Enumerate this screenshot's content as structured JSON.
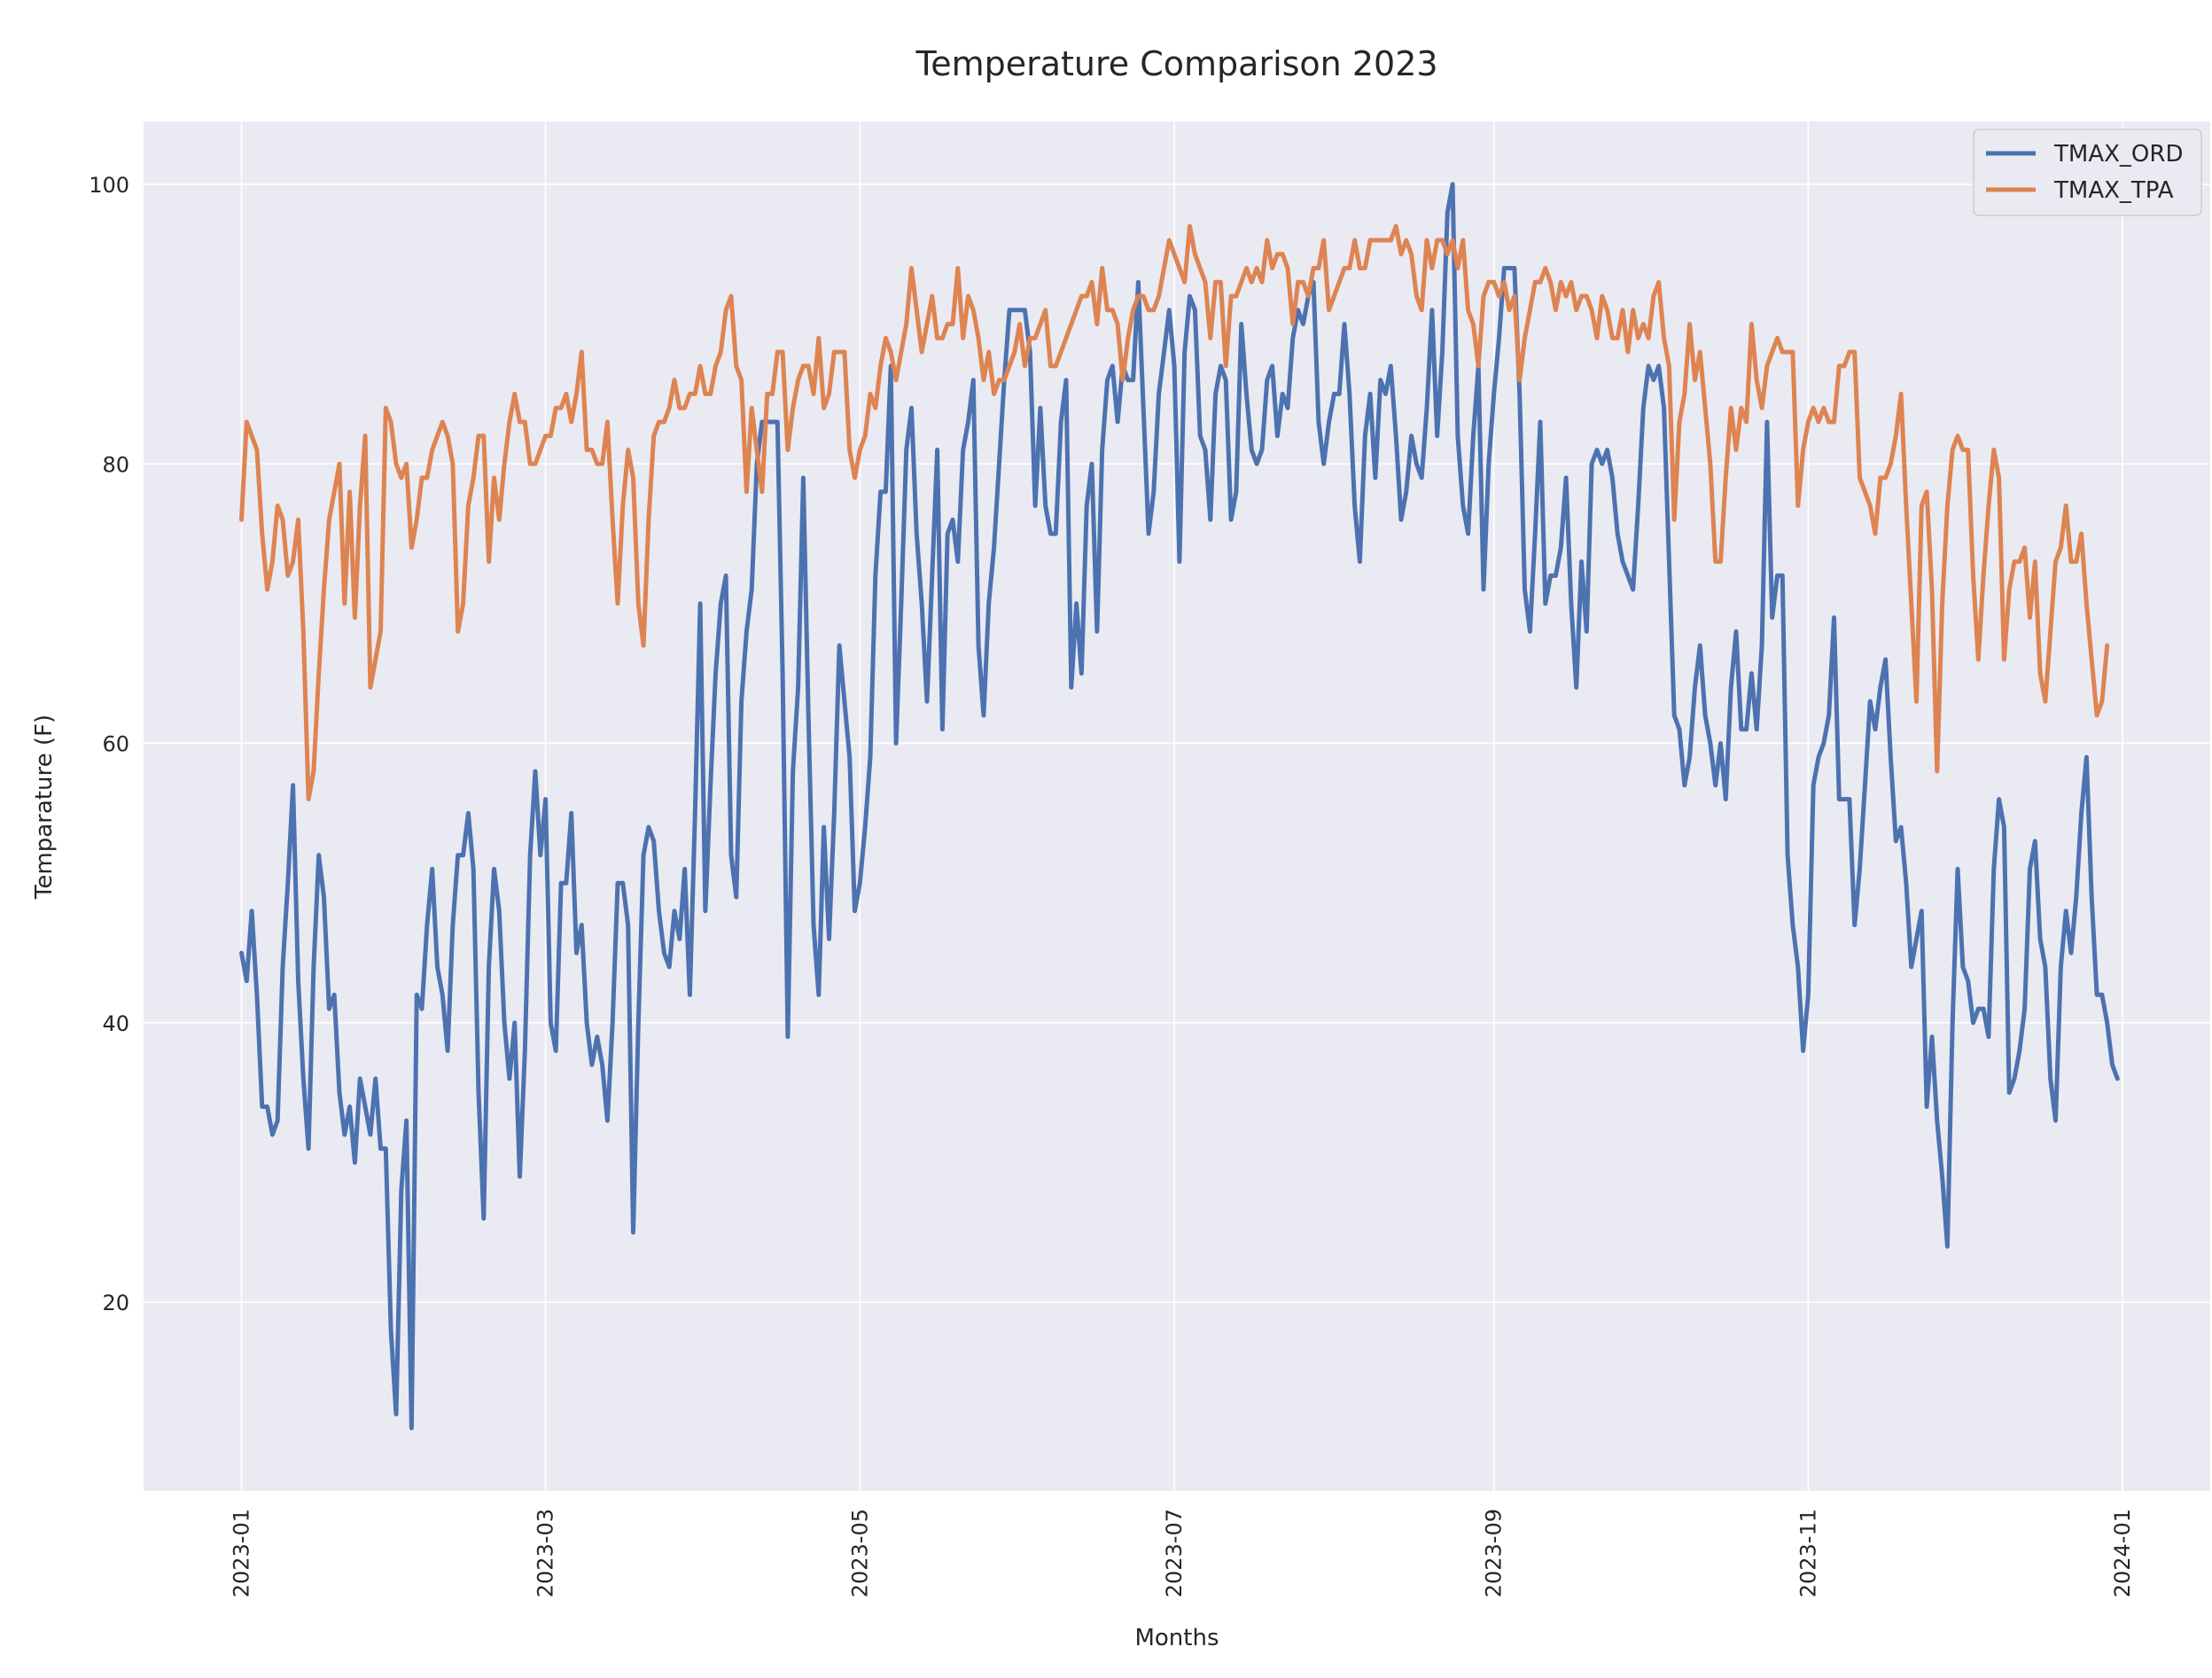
{
  "chart_data": {
    "type": "line",
    "title": "Temperature Comparison 2023",
    "xlabel": "Months",
    "ylabel": "Temparature (F)",
    "x_ticks": [
      "2023-01",
      "2023-03",
      "2023-05",
      "2023-07",
      "2023-09",
      "2023-11",
      "2024-01"
    ],
    "y_ticks": [
      "20",
      "40",
      "60",
      "80",
      "100"
    ],
    "ylim": [
      6.5,
      104.5
    ],
    "xlim": [
      "2022-12-13",
      "2024-01-18"
    ],
    "grid": true,
    "legend_position": "top-right",
    "x_start": "2023-01-01",
    "x_step_days": 1,
    "background_color": "#eaeaf2",
    "grid_color": "#ffffff",
    "series": [
      {
        "name": "TMAX_ORD",
        "color": "#4c72b0",
        "values": [
          45,
          43,
          48,
          42,
          34,
          34,
          32,
          33,
          44,
          50,
          57,
          43,
          36,
          31,
          44,
          52,
          49,
          41,
          42,
          35,
          32,
          34,
          30,
          36,
          34,
          32,
          36,
          31,
          31,
          18,
          12,
          28,
          33,
          11,
          42,
          41,
          47,
          51,
          44,
          42,
          38,
          47,
          52,
          52,
          55,
          51,
          35,
          26,
          44,
          51,
          48,
          40,
          36,
          40,
          29,
          38,
          52,
          58,
          52,
          56,
          40,
          38,
          50,
          50,
          55,
          45,
          47,
          40,
          37,
          39,
          37,
          33,
          40,
          50,
          50,
          47,
          25,
          40,
          52,
          54,
          53,
          48,
          45,
          44,
          48,
          46,
          51,
          42,
          55,
          70,
          48,
          57,
          65,
          70,
          72,
          52,
          49,
          63,
          68,
          71,
          80,
          83,
          83,
          83,
          83,
          65,
          39,
          58,
          64,
          79,
          62,
          47,
          42,
          54,
          46,
          55,
          67,
          63,
          59,
          48,
          50,
          54,
          59,
          72,
          78,
          78,
          87,
          60,
          70,
          81,
          84,
          75,
          70,
          63,
          72,
          81,
          61,
          75,
          76,
          73,
          81,
          83,
          86,
          67,
          62,
          70,
          74,
          80,
          86,
          91,
          91,
          91,
          91,
          88,
          77,
          84,
          77,
          75,
          75,
          83,
          86,
          64,
          70,
          65,
          77,
          80,
          68,
          81,
          86,
          87,
          83,
          87,
          86,
          86,
          93,
          84,
          75,
          78,
          85,
          88,
          91,
          87,
          73,
          88,
          92,
          91,
          82,
          81,
          76,
          85,
          87,
          86,
          76,
          78,
          90,
          85,
          81,
          80,
          81,
          86,
          87,
          82,
          85,
          84,
          89,
          91,
          90,
          92,
          93,
          83,
          80,
          83,
          85,
          85,
          90,
          85,
          77,
          73,
          82,
          85,
          79,
          86,
          85,
          87,
          82,
          76,
          78,
          82,
          80,
          79,
          84,
          91,
          82,
          88,
          98,
          100,
          82,
          77,
          75,
          82,
          87,
          71,
          80,
          85,
          89,
          94,
          94,
          94,
          85,
          71,
          68,
          75,
          83,
          70,
          72,
          72,
          74,
          79,
          70,
          64,
          73,
          68,
          80,
          81,
          80,
          81,
          79,
          75,
          73,
          72,
          71,
          77,
          84,
          87,
          86,
          87,
          84,
          73,
          62,
          61,
          57,
          59,
          64,
          67,
          62,
          60,
          57,
          60,
          56,
          64,
          68,
          61,
          61,
          65,
          61,
          67,
          83,
          69,
          72,
          72,
          52,
          47,
          44,
          38,
          42,
          57,
          59,
          60,
          62,
          69,
          56,
          56,
          56,
          47,
          51,
          57,
          63,
          61,
          64,
          66,
          59,
          53,
          54,
          50,
          44,
          46,
          48,
          34,
          39,
          33,
          29,
          24,
          40,
          51,
          44,
          43,
          40,
          41,
          41,
          39,
          51,
          56,
          54,
          35,
          36,
          38,
          41,
          51,
          53,
          46,
          44,
          36,
          33,
          44,
          48,
          45,
          49,
          55,
          59,
          49,
          42,
          42,
          40,
          37,
          36
        ]
      },
      {
        "name": "TMAX_TPA",
        "color": "#dd8452",
        "values": [
          76,
          83,
          82,
          81,
          75,
          71,
          73,
          77,
          76,
          72,
          73,
          76,
          68,
          56,
          58,
          65,
          71,
          76,
          78,
          80,
          70,
          78,
          69,
          77,
          82,
          64,
          66,
          68,
          84,
          83,
          80,
          79,
          80,
          74,
          76,
          79,
          79,
          81,
          82,
          83,
          82,
          80,
          68,
          70,
          77,
          79,
          82,
          82,
          73,
          79,
          76,
          80,
          83,
          85,
          83,
          83,
          80,
          80,
          81,
          82,
          82,
          84,
          84,
          85,
          83,
          85,
          88,
          81,
          81,
          80,
          80,
          83,
          76,
          70,
          77,
          81,
          79,
          70,
          67,
          76,
          82,
          83,
          83,
          84,
          86,
          84,
          84,
          85,
          85,
          87,
          85,
          85,
          87,
          88,
          91,
          92,
          87,
          86,
          78,
          84,
          81,
          78,
          85,
          85,
          88,
          88,
          81,
          84,
          86,
          87,
          87,
          85,
          89,
          84,
          85,
          88,
          88,
          88,
          81,
          79,
          81,
          82,
          85,
          84,
          87,
          89,
          88,
          86,
          88,
          90,
          94,
          91,
          88,
          90,
          92,
          89,
          89,
          90,
          90,
          94,
          89,
          92,
          91,
          89,
          86,
          88,
          85,
          86,
          86,
          87,
          88,
          90,
          87,
          89,
          89,
          90,
          91,
          87,
          87,
          88,
          89,
          90,
          91,
          92,
          92,
          93,
          90,
          94,
          91,
          91,
          90,
          86,
          89,
          91,
          92,
          92,
          91,
          91,
          92,
          94,
          96,
          95,
          94,
          93,
          97,
          95,
          94,
          93,
          89,
          93,
          93,
          87,
          92,
          92,
          93,
          94,
          93,
          94,
          93,
          96,
          94,
          95,
          95,
          94,
          90,
          93,
          93,
          92,
          94,
          94,
          96,
          91,
          92,
          93,
          94,
          94,
          96,
          94,
          94,
          96,
          96,
          96,
          96,
          96,
          97,
          95,
          96,
          95,
          92,
          91,
          96,
          94,
          96,
          96,
          95,
          96,
          94,
          96,
          91,
          90,
          87,
          92,
          93,
          93,
          92,
          93,
          91,
          92,
          86,
          89,
          91,
          93,
          93,
          94,
          93,
          91,
          93,
          92,
          93,
          91,
          92,
          92,
          91,
          89,
          92,
          91,
          89,
          89,
          91,
          88,
          91,
          89,
          90,
          89,
          92,
          93,
          89,
          87,
          76,
          83,
          85,
          90,
          86,
          88,
          84,
          80,
          73,
          73,
          79,
          84,
          81,
          84,
          83,
          90,
          86,
          84,
          87,
          88,
          89,
          88,
          88,
          88,
          77,
          81,
          83,
          84,
          83,
          84,
          83,
          83,
          87,
          87,
          88,
          88,
          79,
          78,
          77,
          75,
          79,
          79,
          80,
          82,
          85,
          77,
          70,
          63,
          77,
          78,
          71,
          58,
          70,
          77,
          81,
          82,
          81,
          81,
          72,
          66,
          72,
          77,
          81,
          79,
          66,
          71,
          73,
          73,
          74,
          69,
          73,
          65,
          63,
          68,
          73,
          74,
          77,
          73,
          73,
          75,
          70,
          66,
          62,
          63,
          67
        ]
      }
    ]
  }
}
